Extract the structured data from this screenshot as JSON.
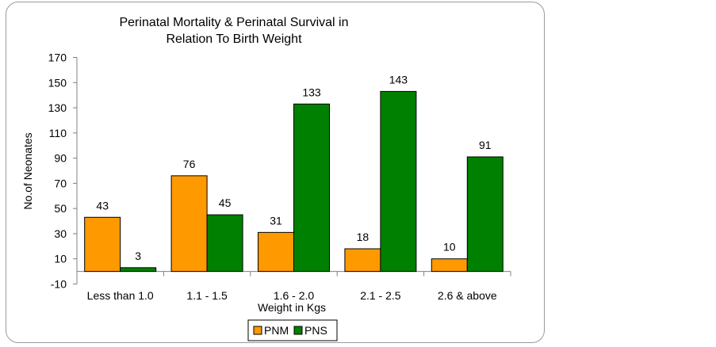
{
  "chart_data": {
    "type": "bar",
    "title_line1": "Perinatal Mortality & Perinatal Survival in",
    "title_line2": "Relation To Birth Weight",
    "xlabel": "Weight in Kgs",
    "ylabel": "No.of Neonates",
    "categories": [
      "Less than 1.0",
      "1.1 - 1.5",
      "1.6 - 2.0",
      "2.1 - 2.5",
      "2.6 & above"
    ],
    "series": [
      {
        "name": "PNM",
        "color": "#FF9900",
        "values": [
          43,
          76,
          31,
          18,
          10
        ]
      },
      {
        "name": "PNS",
        "color": "#008000",
        "values": [
          3,
          45,
          133,
          143,
          91
        ]
      }
    ],
    "ylim": [
      -10,
      170
    ],
    "yticks": [
      -10,
      10,
      30,
      50,
      70,
      90,
      110,
      130,
      150,
      170
    ],
    "legend_position": "bottom-center",
    "grid": false
  }
}
